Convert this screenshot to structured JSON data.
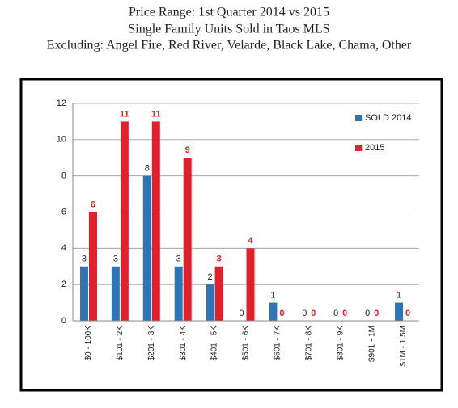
{
  "chart_data": {
    "type": "bar",
    "title": [
      "Price Range:  1st Quarter 2014 vs 2015",
      "Single Family Units Sold in Taos MLS",
      "Excluding:  Angel Fire, Red River, Velarde, Black Lake, Chama, Other"
    ],
    "categories": [
      "$0 - 100K",
      "$101 - 2K",
      "$201 - 3K",
      "$301 - 4K",
      "$401 - 5K",
      "$501 - 6K",
      "$601 - 7K",
      "$701 - 8K",
      "$801 - 9K",
      "$901 - 1M",
      "$1M - 1.5M"
    ],
    "series": [
      {
        "name": "SOLD 2014",
        "color": "#2e75b6",
        "values": [
          3,
          3,
          8,
          3,
          2,
          0,
          1,
          0,
          0,
          0,
          1
        ]
      },
      {
        "name": "2015",
        "color": "#e0202a",
        "values": [
          6,
          11,
          11,
          9,
          3,
          4,
          0,
          0,
          0,
          0,
          0
        ]
      }
    ],
    "ylim": [
      0,
      12
    ],
    "yticks": [
      0,
      2,
      4,
      6,
      8,
      10,
      12
    ],
    "grid": true,
    "legend": "top-right"
  }
}
